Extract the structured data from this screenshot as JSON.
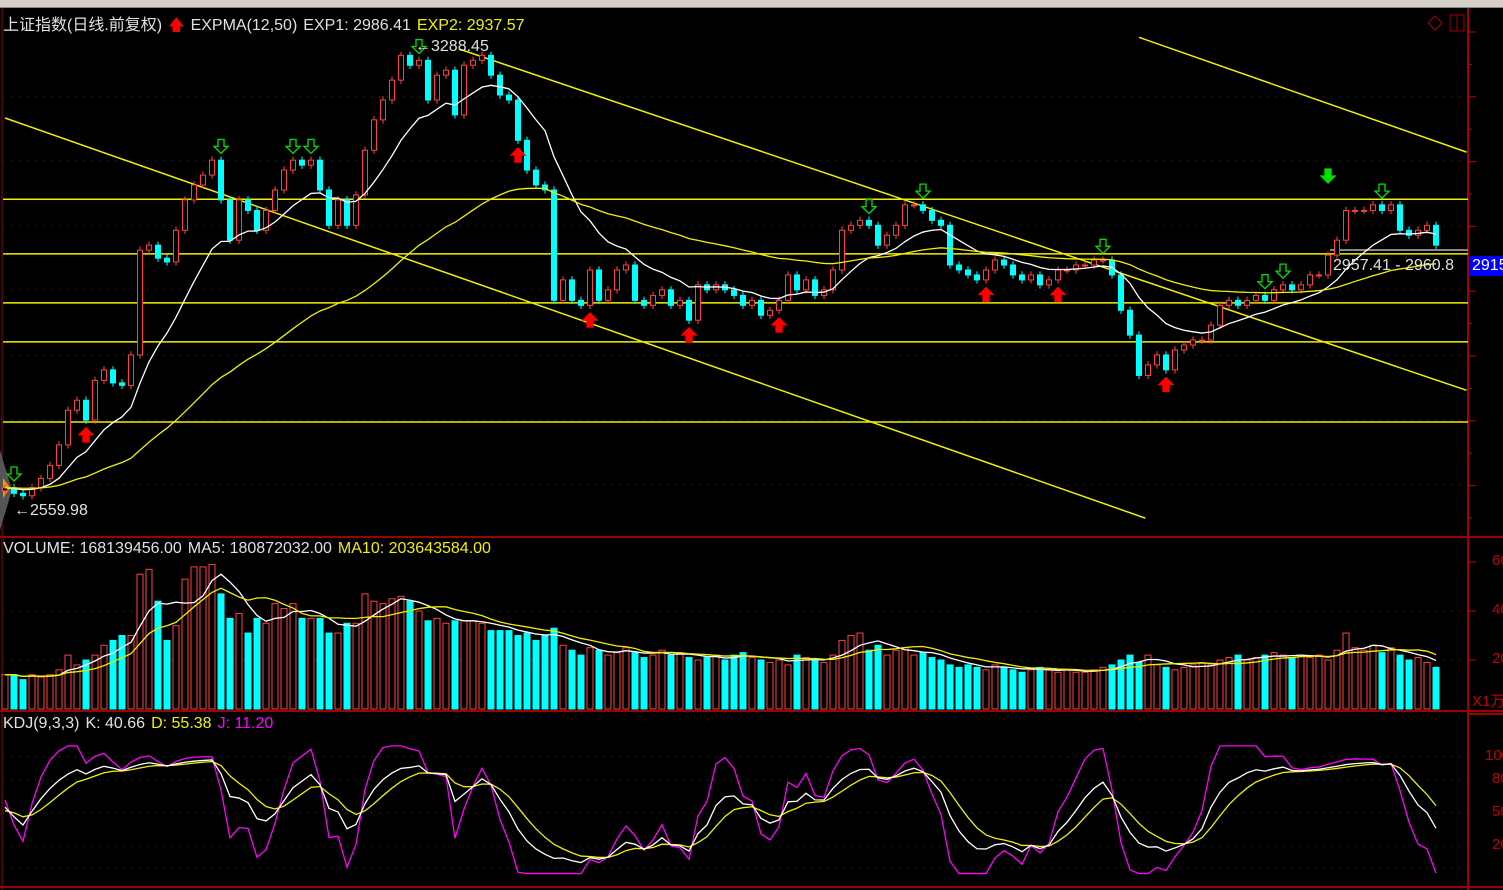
{
  "header": {
    "title": "上证指数(日线.前复权)",
    "indicator": "EXPMA(12,50)",
    "exp1": "EXP1: 2986.41",
    "exp2": "EXP2: 2937.57"
  },
  "volume_header": {
    "volume": "VOLUME: 168139456.00",
    "ma5": "MA5: 180872032.00",
    "ma10": "MA10: 203643584.00"
  },
  "kdj_header": {
    "name": "KDJ(9,3,3)",
    "k": "K: 40.66",
    "d": "D: 55.38",
    "j": "J: 11.20"
  },
  "annotations": {
    "high_label": "3288.45",
    "low_label": "2559.98",
    "range_label": "2957.41 - 2960.8",
    "price_tag": "2915"
  },
  "colors": {
    "up": "#ff4040",
    "down": "#00ffff",
    "exp1": "#ffffff",
    "exp2": "#f0f000",
    "k": "#ffffff",
    "d": "#f0f000",
    "j": "#ff00ff",
    "drawing": "#f0f000",
    "grid": "#c00000",
    "buy_signal": "#ff0000",
    "sell_signal": "#00e000",
    "price_tag_bg": "#0000ff"
  },
  "icons": [
    "diamond-icon",
    "split-window-icon",
    "up-arrow-icon"
  ],
  "chart_data": {
    "type": "candlestick",
    "price": {
      "closes": [
        2575,
        2566,
        2562,
        2575,
        2590,
        2611,
        2644,
        2700,
        2716,
        2684,
        2748,
        2765,
        2744,
        2740,
        2789,
        2958,
        2966,
        2945,
        2939,
        2990,
        3039,
        3063,
        3079,
        3103,
        3039,
        2974,
        3039,
        3022,
        2990,
        3022,
        3055,
        3087,
        3103,
        3095,
        3103,
        3055,
        2998,
        3039,
        2998,
        3047,
        3119,
        3168,
        3200,
        3232,
        3272,
        3256,
        3264,
        3200,
        3240,
        3248,
        3176,
        3256,
        3264,
        3272,
        3240,
        3208,
        3200,
        3135,
        3087,
        3063,
        3055,
        2877,
        2910,
        2877,
        2869,
        2926,
        2877,
        2894,
        2926,
        2934,
        2877,
        2869,
        2885,
        2894,
        2869,
        2877,
        2845,
        2902,
        2894,
        2902,
        2894,
        2885,
        2869,
        2877,
        2853,
        2861,
        2877,
        2918,
        2894,
        2910,
        2885,
        2894,
        2926,
        2990,
        2998,
        3006,
        2998,
        2966,
        2982,
        2998,
        3031,
        3031,
        3022,
        3006,
        2998,
        2934,
        2926,
        2918,
        2910,
        2926,
        2942,
        2934,
        2918,
        2910,
        2918,
        2902,
        2910,
        2926,
        2926,
        2934,
        2934,
        2942,
        2942,
        2918,
        2861,
        2821,
        2756,
        2773,
        2789,
        2765,
        2797,
        2805,
        2813,
        2813,
        2837,
        2869,
        2877,
        2869,
        2877,
        2885,
        2877,
        2894,
        2902,
        2894,
        2902,
        2918,
        2918,
        2950,
        2974,
        3022,
        3022,
        3022,
        3031,
        3022,
        3031,
        2990,
        2982,
        2990,
        2998,
        2966
      ],
      "expma_periods": [
        12,
        50
      ],
      "max_marked": 3288.45,
      "min_marked": 2559.98,
      "horizontal_lines": [
        3040,
        2952,
        2873,
        2810,
        2681
      ],
      "trendlines": [
        {
          "from": [
            0,
            3171
          ],
          "to": [
            126.7,
            2526
          ]
        },
        {
          "from": [
            50.5,
            3282
          ],
          "to": [
            162.4,
            2732
          ]
        },
        {
          "from": [
            126,
            3301
          ],
          "to": [
            162.4,
            3116
          ]
        }
      ],
      "buy_signals": [
        9,
        57,
        65,
        76,
        86,
        109,
        117,
        129
      ],
      "sell_signals": [
        1,
        24,
        32,
        34,
        46,
        96,
        102,
        122,
        140,
        142,
        153
      ],
      "strong_sell_signals": [
        147
      ]
    },
    "volume": {
      "values": [
        14,
        14,
        12,
        14,
        13,
        14,
        16,
        22,
        18,
        20,
        22,
        26,
        28,
        30,
        30,
        55,
        57,
        44,
        28,
        34,
        53,
        58,
        58,
        59,
        47,
        37,
        39,
        31,
        37,
        35,
        43,
        41,
        43,
        37,
        37,
        37,
        31,
        31,
        35,
        35,
        47,
        44,
        43,
        45,
        46,
        44,
        40,
        36,
        37,
        35,
        36,
        36,
        36,
        35,
        32,
        32,
        32,
        30,
        31,
        28,
        30,
        33,
        26,
        24,
        22,
        25,
        24,
        22,
        23,
        25,
        23,
        21,
        22,
        24,
        22,
        23,
        21,
        20,
        21,
        22,
        20,
        22,
        23,
        21,
        20,
        19,
        20,
        18,
        22,
        21,
        20,
        19,
        22,
        28,
        30,
        31,
        24,
        26,
        22,
        24,
        25,
        22,
        23,
        21,
        20,
        18,
        17,
        18,
        17,
        16,
        18,
        17,
        16,
        15,
        16,
        17,
        16,
        15,
        16,
        15,
        15,
        16,
        17,
        18,
        20,
        22,
        19,
        22,
        18,
        17,
        16,
        17,
        18,
        19,
        18,
        20,
        21,
        22,
        20,
        21,
        22,
        23,
        22,
        21,
        22,
        21,
        22,
        20,
        24,
        31,
        25,
        24,
        26,
        23,
        25,
        22,
        20,
        21,
        19,
        17
      ],
      "ma_periods": [
        5,
        10
      ],
      "ticks": [
        "60",
        "40",
        "20"
      ],
      "unit_label": "X1万",
      "ylim": [
        0,
        60
      ]
    },
    "kdj": {
      "params": [
        9,
        3,
        3
      ],
      "ticks": [
        "100",
        "80",
        "50",
        "20"
      ],
      "ylim": [
        0,
        100
      ]
    }
  }
}
